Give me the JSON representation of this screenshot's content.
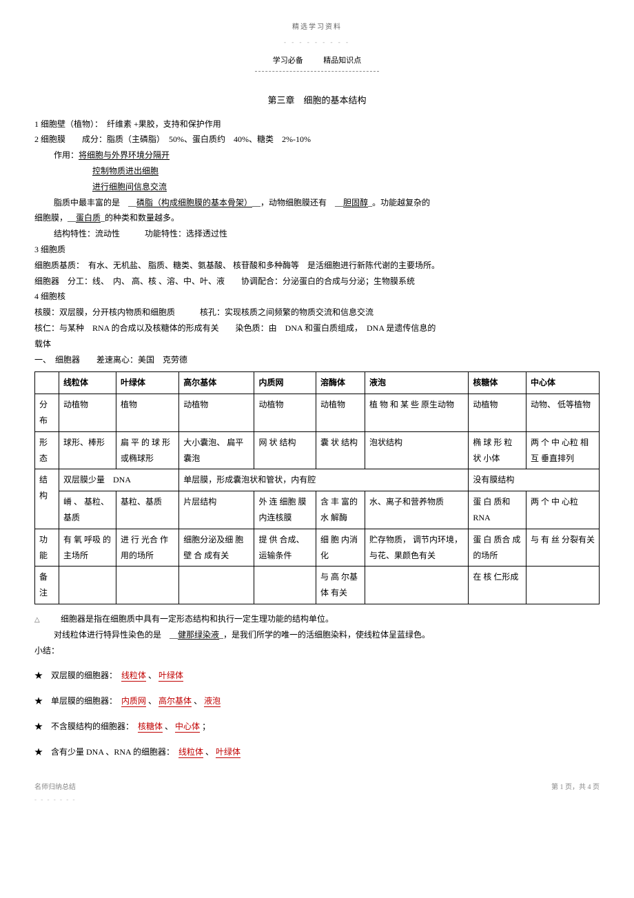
{
  "top_small": "精选学习资料",
  "header_left": "学习必备",
  "header_right": "精品知识点",
  "chapter_title": "第三章　细胞的基本结构",
  "p1": "1 细胞壁（植物）：　纤维素 +果胶，支持和保护作用",
  "p2": "2 细胞膜　　成分：脂质（主磷脂）　50%、蛋白质约　40%、糖类　2%-10%",
  "p3": "作用：",
  "p3u": "将细胞与外界环境分隔开",
  "p4u": "控制物质进出细胞",
  "p5u": "进行细胞间信息交流",
  "p6a": "脂质中最丰富的是　__",
  "p6b": "磷脂（构成细胞膜的基本骨架）",
  "p6c": "__，动物细胞膜还有　__",
  "p6d": "胆固醇",
  "p6e": "_。功能越复杂的",
  "p7a": "细胞膜，__",
  "p7b": "蛋白质",
  "p7c": "_的种类和数量越多。",
  "p8": "结构特性：流动性　　　功能特性：选择透过性",
  "p9": "3 细胞质",
  "p10": "细胞质基质：　有水、无机盐、 脂质、糖类、氨基酸、 核苷酸和多种酶等　是活细胞进行新陈代谢的主要场所。",
  "p11": "细胞器　分工：线、　内、 高、核 、溶、中、叶、液　　协调配合：分泌蛋白的合成与分泌；生物膜系统",
  "p12": "4 细胞核",
  "p13": "核膜：双层膜，分开核内物质和细胞质　　　核孔：实现核质之间频繁的物质交流和信息交流",
  "p14": "核仁：与某种　RNA 的合成以及核糖体的形成有关　　染色质：由　DNA 和蛋白质组成，　DNA 是遗传信息的",
  "p15": "载体",
  "p16": "一、　细胞器　　差速离心：美国　克劳德",
  "table": {
    "headers": [
      "",
      "线粒体",
      "叶绿体",
      "高尔基体",
      "内质网",
      "溶酶体",
      "液泡",
      "核糖体",
      "中心体"
    ],
    "row_labels": [
      "分布",
      "形态",
      "结构",
      "",
      "功能",
      "备注"
    ],
    "r1": [
      "动植物",
      "植物",
      "动植物",
      "动植物",
      "动植物",
      "植 物 和 某 些 原生动物",
      "动植物",
      "动物、 低等植物"
    ],
    "r2": [
      "球形、棒形",
      "扁 平 的 球 形 或椭球形",
      "大小囊泡、 扁平囊泡",
      "网 状 结构",
      "囊 状 结构",
      "泡状结构",
      "椭 球 形 粒 状 小体",
      "两 个 中 心粒 相 互 垂直排列"
    ],
    "r3_merge_left": "双层膜少量　DNA",
    "r3_merge_mid": "单层膜，形成囊泡状和管状，内有腔",
    "r3_merge_right": "没有膜结构",
    "r4": [
      "嵴 、 基粒、基质",
      "基粒、基质",
      "片层结构",
      "外 连 细胞 膜 内连核膜",
      "含 丰 富的 水 解酶",
      "水、离子和营养物质",
      "蛋 白 质和 RNA",
      "两 个 中 心粒"
    ],
    "r5": [
      "有 氧 呼吸 的 主场所",
      "进 行 光合 作 用的场所",
      "细胞分泌及细 胞 壁 合 成有关",
      "提 供 合成、运输条件",
      "细 胞 内消化",
      "贮存物质， 调节内环境，与花、果颜色有关",
      "蛋 白 质合 成 的场所",
      "与 有 丝 分裂有关"
    ],
    "r6": [
      "",
      "",
      "",
      "",
      "与 高 尔基 体 有关",
      "",
      "在 核 仁形成",
      ""
    ]
  },
  "after1": "细胞器是指在细胞质中具有一定形态结构和执行一定生理功能的结构单位。",
  "after2a": "对线粒体进行特异性染色的是　__",
  "after2b": "健那绿染液",
  "after2c": "_，是我们所学的唯一的活细胞染料，使线粒体呈蓝绿色。",
  "after3": "小结：",
  "s1a": "★　双层膜的细胞器：　",
  "s1b1": "线粒体",
  "s1b2": "叶绿体",
  "s2a": "★　单层膜的细胞器：　",
  "s2b1": "内质网",
  "s2b2": "高尔基体",
  "s2b3": "液泡",
  "s3a": "★　不含膜结构的细胞器：　",
  "s3b1": "核糖体",
  "s3b2": "中心体",
  "s4a": "★　含有少量 DNA 、RNA 的细胞器：　",
  "s4b1": "线粒体",
  "s4b2": "叶绿体",
  "footer_left": "名师归纳总结",
  "footer_right": "第 1 页，共 4 页"
}
